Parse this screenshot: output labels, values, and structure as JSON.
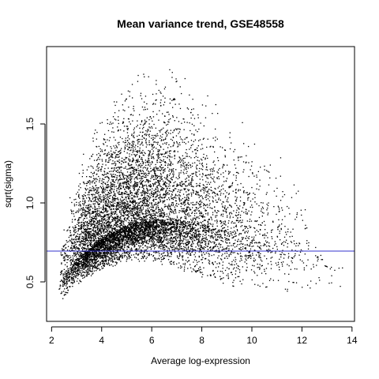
{
  "chart_data": {
    "type": "scatter",
    "title": "Mean variance trend, GSE48558",
    "xlabel": "Average log-expression",
    "ylabel": "sqrt(sigma)",
    "xlim": [
      1.8,
      14.1
    ],
    "ylim": [
      0.25,
      1.99
    ],
    "xticks": [
      2,
      4,
      6,
      8,
      10,
      12,
      14
    ],
    "yticks": [
      0.5,
      1.0,
      1.5
    ],
    "ytick_labels": [
      "0.5",
      "1.0",
      "1.5"
    ],
    "reference_line": {
      "y": 0.695,
      "orientation": "horizontal",
      "color": "#3333cc"
    },
    "point_color": "#000000",
    "grid": false,
    "legend": "none",
    "trend_summary": {
      "x": [
        2.2,
        2.5,
        3.0,
        4.0,
        5.0,
        6.0,
        7.0,
        8.0,
        9.0,
        10.0,
        11.0,
        12.0,
        13.0
      ],
      "lower_envelope_y": [
        0.37,
        0.42,
        0.5,
        0.6,
        0.65,
        0.65,
        0.6,
        0.55,
        0.5,
        0.47,
        0.45,
        0.42,
        0.38
      ],
      "dense_center_y": [
        0.46,
        0.55,
        0.65,
        0.78,
        0.86,
        0.9,
        0.9,
        0.87,
        0.82,
        0.78,
        0.75,
        0.72,
        0.6
      ],
      "upper_envelope_y": [
        0.72,
        0.95,
        1.2,
        1.5,
        1.72,
        1.82,
        1.85,
        1.7,
        1.55,
        1.42,
        1.32,
        1.1,
        0.55
      ]
    }
  }
}
